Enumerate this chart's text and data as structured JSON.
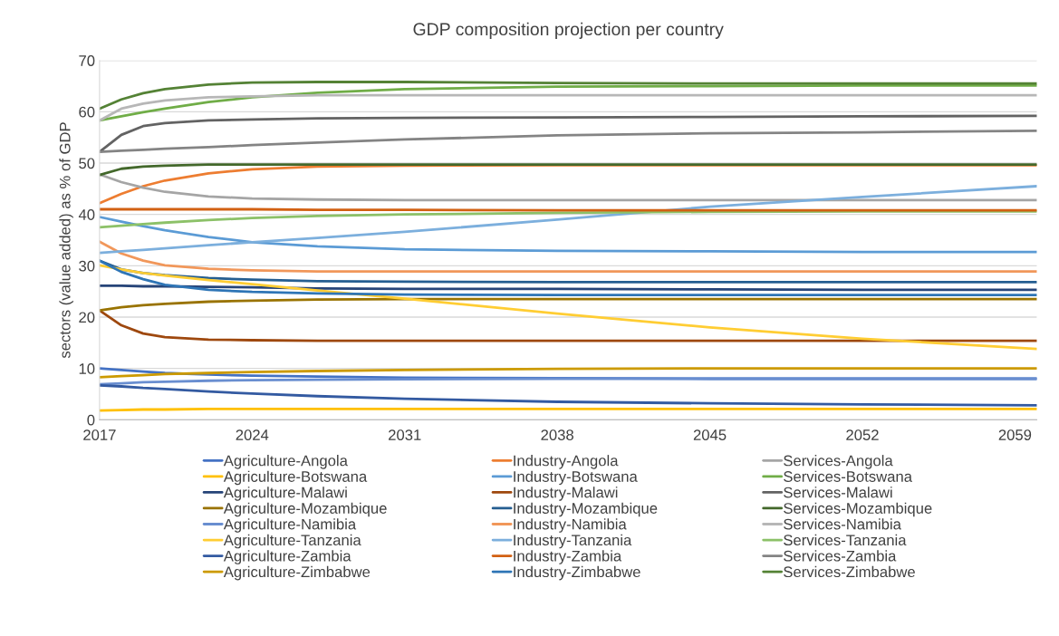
{
  "chart_data": {
    "type": "line",
    "title": "GDP composition projection per country",
    "ylabel": "sectors (value added) as % of GDP",
    "x": [
      2017,
      2018,
      2019,
      2020,
      2022,
      2024,
      2027,
      2031,
      2038,
      2045,
      2052,
      2060
    ],
    "xlim": [
      2017,
      2060
    ],
    "xticks": [
      2017,
      2024,
      2031,
      2038,
      2045,
      2052,
      2059
    ],
    "ylim": [
      0,
      70
    ],
    "yticks": [
      0,
      10,
      20,
      30,
      40,
      50,
      60,
      70
    ],
    "grid": "y",
    "legend": "bottom",
    "marker": "none",
    "line_style": "solid",
    "series": [
      {
        "name": "Agriculture-Angola",
        "color": "#4472c4",
        "values": [
          10,
          9.7,
          9.4,
          9.1,
          8.8,
          8.6,
          8.4,
          8.2,
          8.1,
          8.0,
          8.0,
          8.0
        ]
      },
      {
        "name": "Industry-Angola",
        "color": "#ed7d31",
        "values": [
          42.2,
          44,
          45.5,
          46.6,
          48,
          48.8,
          49.3,
          49.5,
          49.6,
          49.6,
          49.6,
          49.6
        ]
      },
      {
        "name": "Services-Angola",
        "color": "#a5a5a5",
        "values": [
          47.8,
          46.3,
          45.2,
          44.4,
          43.5,
          43.1,
          42.9,
          42.8,
          42.8,
          42.8,
          42.8,
          42.8
        ]
      },
      {
        "name": "Agriculture-Botswana",
        "color": "#ffc000",
        "values": [
          1.8,
          1.9,
          2.0,
          2.0,
          2.1,
          2.1,
          2.1,
          2.1,
          2.1,
          2.1,
          2.1,
          2.1
        ]
      },
      {
        "name": "Industry-Botswana",
        "color": "#5b9bd5",
        "values": [
          39.5,
          38.6,
          37.7,
          36.9,
          35.6,
          34.6,
          33.8,
          33.2,
          32.9,
          32.8,
          32.7,
          32.7
        ]
      },
      {
        "name": "Services-Botswana",
        "color": "#70ad47",
        "values": [
          58.3,
          59.1,
          59.9,
          60.6,
          61.9,
          62.8,
          63.7,
          64.4,
          64.9,
          65.0,
          65.1,
          65.1
        ]
      },
      {
        "name": "Agriculture-Malawi",
        "color": "#264478",
        "values": [
          26.1,
          26.1,
          26.0,
          26.0,
          25.9,
          25.8,
          25.6,
          25.5,
          25.5,
          25.4,
          25.3,
          25.3
        ]
      },
      {
        "name": "Industry-Malawi",
        "color": "#9e480e",
        "values": [
          21.3,
          18.4,
          16.8,
          16.1,
          15.6,
          15.5,
          15.4,
          15.4,
          15.4,
          15.4,
          15.4,
          15.4
        ]
      },
      {
        "name": "Services-Malawi",
        "color": "#636363",
        "values": [
          52.2,
          55.5,
          57.2,
          57.8,
          58.3,
          58.5,
          58.7,
          58.8,
          58.9,
          59.0,
          59.1,
          59.2
        ]
      },
      {
        "name": "Agriculture-Mozambique",
        "color": "#997300",
        "values": [
          21.3,
          21.9,
          22.3,
          22.6,
          23.0,
          23.2,
          23.4,
          23.5,
          23.5,
          23.5,
          23.5,
          23.5
        ]
      },
      {
        "name": "Industry-Mozambique",
        "color": "#255e91",
        "values": [
          31,
          29.3,
          28.6,
          28.2,
          27.6,
          27.3,
          27.0,
          26.9,
          26.8,
          26.8,
          26.8,
          26.8
        ]
      },
      {
        "name": "Services-Mozambique",
        "color": "#43682b",
        "values": [
          47.7,
          48.9,
          49.3,
          49.5,
          49.7,
          49.7,
          49.7,
          49.7,
          49.7,
          49.7,
          49.7,
          49.7
        ]
      },
      {
        "name": "Agriculture-Namibia",
        "color": "#698ed0",
        "values": [
          6.9,
          7.1,
          7.3,
          7.4,
          7.6,
          7.7,
          7.8,
          7.9,
          8.0,
          8.0,
          8.0,
          8.0
        ]
      },
      {
        "name": "Industry-Namibia",
        "color": "#f1975a",
        "values": [
          34.7,
          32.4,
          31.0,
          30.1,
          29.4,
          29.1,
          28.9,
          28.9,
          28.9,
          28.9,
          28.9,
          28.9
        ]
      },
      {
        "name": "Services-Namibia",
        "color": "#b7b7b7",
        "values": [
          58.3,
          60.6,
          61.6,
          62.2,
          62.8,
          63.0,
          63.2,
          63.2,
          63.2,
          63.2,
          63.2,
          63.2
        ]
      },
      {
        "name": "Agriculture-Tanzania",
        "color": "#ffcd33",
        "values": [
          30.1,
          29.3,
          28.6,
          28.1,
          27.2,
          26.4,
          25.2,
          23.6,
          20.7,
          18.0,
          15.8,
          13.8
        ]
      },
      {
        "name": "Industry-Tanzania",
        "color": "#7cafdd",
        "values": [
          32.5,
          32.8,
          33.1,
          33.4,
          34.0,
          34.6,
          35.4,
          36.6,
          39.0,
          41.5,
          43.4,
          45.5
        ]
      },
      {
        "name": "Services-Tanzania",
        "color": "#8cc168",
        "values": [
          37.5,
          37.8,
          38.1,
          38.4,
          38.9,
          39.3,
          39.7,
          40.0,
          40.3,
          40.5,
          40.6,
          40.6
        ]
      },
      {
        "name": "Agriculture-Zambia",
        "color": "#335aa1",
        "values": [
          6.7,
          6.5,
          6.2,
          6.0,
          5.5,
          5.1,
          4.6,
          4.1,
          3.5,
          3.2,
          3.0,
          2.8
        ]
      },
      {
        "name": "Industry-Zambia",
        "color": "#d26012",
        "values": [
          41,
          41,
          41,
          41,
          41,
          41,
          40.9,
          40.9,
          40.8,
          40.8,
          40.8,
          40.8
        ]
      },
      {
        "name": "Services-Zambia",
        "color": "#848484",
        "values": [
          52.2,
          52.4,
          52.6,
          52.8,
          53.1,
          53.5,
          54.0,
          54.6,
          55.4,
          55.8,
          56.0,
          56.3
        ]
      },
      {
        "name": "Agriculture-Zimbabwe",
        "color": "#cc9a00",
        "values": [
          8.3,
          8.5,
          8.7,
          8.9,
          9.1,
          9.3,
          9.5,
          9.7,
          9.9,
          10.0,
          10.0,
          10.0
        ]
      },
      {
        "name": "Industry-Zimbabwe",
        "color": "#2e75b6",
        "values": [
          31,
          28.8,
          27.4,
          26.3,
          25.3,
          24.9,
          24.6,
          24.4,
          24.3,
          24.3,
          24.3,
          24.3
        ]
      },
      {
        "name": "Services-Zimbabwe",
        "color": "#548235",
        "values": [
          60.6,
          62.4,
          63.6,
          64.4,
          65.3,
          65.7,
          65.8,
          65.8,
          65.6,
          65.5,
          65.5,
          65.5
        ]
      }
    ]
  }
}
